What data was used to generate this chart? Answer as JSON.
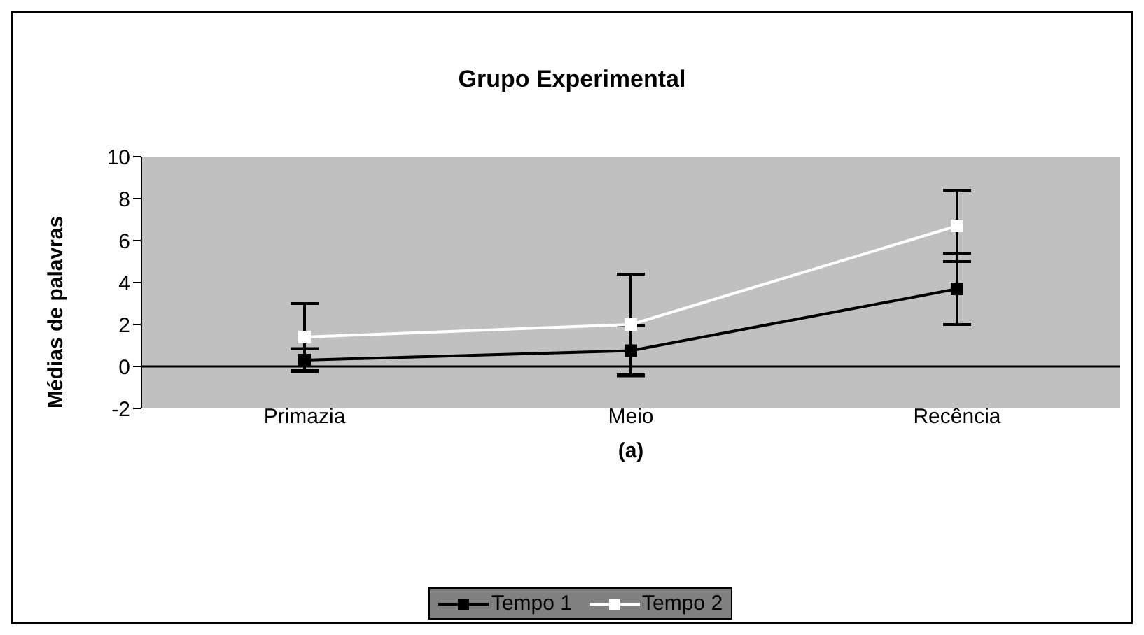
{
  "chart_data": {
    "type": "line",
    "title": "Grupo Experimental",
    "xlabel": "(a)",
    "ylabel": "Médias de palavras",
    "categories": [
      "Primazia",
      "Meio",
      "Recência"
    ],
    "series": [
      {
        "name": "Tempo 1",
        "color": "#000000",
        "values": [
          0.3,
          0.75,
          3.7
        ],
        "errors": [
          0.55,
          1.2,
          1.7
        ]
      },
      {
        "name": "Tempo 2",
        "color": "#ffffff",
        "values": [
          1.4,
          2.0,
          6.7
        ],
        "errors": [
          1.6,
          2.4,
          1.7
        ]
      }
    ],
    "ylim": [
      -2,
      10
    ],
    "yticks": [
      -2,
      0,
      2,
      4,
      6,
      8,
      10
    ],
    "grid": false,
    "legend": "bottom",
    "marker": "square",
    "line_style": "solid",
    "ref_lines": [
      {
        "axis": "y",
        "value": 0,
        "color": "#000000"
      }
    ]
  }
}
